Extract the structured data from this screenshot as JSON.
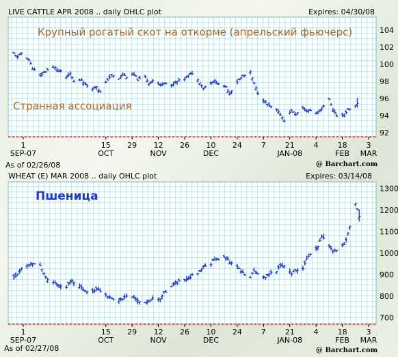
{
  "chart_data": [
    {
      "type": "ohlc",
      "header_left": "LIVE CATTLE APR 2008 .. daily OHLC plot",
      "header_right": "Expires: 04/30/08",
      "title": "Крупный рогатый скот на откорме (апрельский фьючерс)",
      "annotation": "Странная ассоциация",
      "as_of": "As of 02/26/08",
      "source": "@ Barchart.com",
      "ylim": [
        91.5,
        105.5
      ],
      "yticks": [
        "92",
        "94",
        "96",
        "98",
        "100",
        "102",
        "104"
      ],
      "xticks": [
        {
          "label": "1",
          "sub": "SEP-07"
        },
        {
          "label": "15",
          "sub": "OCT"
        },
        {
          "label": "29",
          "sub": ""
        },
        {
          "label": "12",
          "sub": "NOV"
        },
        {
          "label": "26",
          "sub": ""
        },
        {
          "label": "10",
          "sub": "DEC"
        },
        {
          "label": "24",
          "sub": ""
        },
        {
          "label": "7",
          "sub": ""
        },
        {
          "label": "21",
          "sub": "JAN-08"
        },
        {
          "label": "4",
          "sub": ""
        },
        {
          "label": "18",
          "sub": "FEB"
        },
        {
          "label": "3",
          "sub": "MAR"
        }
      ],
      "x_start": "2007-08-27",
      "xtick_dates": [
        "2007-09-01",
        "2007-10-15",
        "2007-10-29",
        "2007-11-12",
        "2007-11-26",
        "2007-12-10",
        "2007-12-24",
        "2008-01-07",
        "2008-01-21",
        "2008-02-04",
        "2008-02-18",
        "2008-03-03"
      ],
      "anchors": [
        [
          "2007-08-27",
          101.2
        ],
        [
          "2007-08-29",
          100.8
        ],
        [
          "2007-08-31",
          101.3
        ],
        [
          "2007-09-04",
          100.5
        ],
        [
          "2007-09-06",
          99.5
        ],
        [
          "2007-09-10",
          98.6
        ],
        [
          "2007-09-12",
          99.0
        ],
        [
          "2007-09-14",
          99.3
        ],
        [
          "2007-09-18",
          99.6
        ],
        [
          "2007-09-20",
          99.3
        ],
        [
          "2007-09-24",
          98.5
        ],
        [
          "2007-09-26",
          98.9
        ],
        [
          "2007-09-28",
          97.9
        ],
        [
          "2007-10-02",
          98.2
        ],
        [
          "2007-10-04",
          97.6
        ],
        [
          "2007-10-08",
          97.2
        ],
        [
          "2007-10-10",
          97.4
        ],
        [
          "2007-10-12",
          96.7
        ],
        [
          "2007-10-16",
          98.2
        ],
        [
          "2007-10-18",
          98.7
        ],
        [
          "2007-10-22",
          98.3
        ],
        [
          "2007-10-24",
          98.8
        ],
        [
          "2007-10-26",
          98.5
        ],
        [
          "2007-10-30",
          98.8
        ],
        [
          "2007-11-01",
          98.2
        ],
        [
          "2007-11-05",
          98.4
        ],
        [
          "2007-11-07",
          97.8
        ],
        [
          "2007-11-09",
          98.1
        ],
        [
          "2007-11-13",
          97.5
        ],
        [
          "2007-11-15",
          97.9
        ],
        [
          "2007-11-19",
          97.4
        ],
        [
          "2007-11-21",
          97.9
        ],
        [
          "2007-11-26",
          98.3
        ],
        [
          "2007-11-28",
          98.7
        ],
        [
          "2007-11-30",
          98.9
        ],
        [
          "2007-12-04",
          97.9
        ],
        [
          "2007-12-06",
          97.2
        ],
        [
          "2007-12-10",
          97.8
        ],
        [
          "2007-12-12",
          98.0
        ],
        [
          "2007-12-14",
          97.7
        ],
        [
          "2007-12-18",
          97.3
        ],
        [
          "2007-12-20",
          96.6
        ],
        [
          "2007-12-24",
          97.9
        ],
        [
          "2007-12-27",
          98.6
        ],
        [
          "2007-12-31",
          99.0
        ],
        [
          "2008-01-02",
          97.7
        ],
        [
          "2008-01-04",
          96.6
        ],
        [
          "2008-01-08",
          95.5
        ],
        [
          "2008-01-10",
          95.1
        ],
        [
          "2008-01-14",
          94.6
        ],
        [
          "2008-01-16",
          94.1
        ],
        [
          "2008-01-18",
          93.4
        ],
        [
          "2008-01-22",
          94.6
        ],
        [
          "2008-01-24",
          94.1
        ],
        [
          "2008-01-28",
          94.8
        ],
        [
          "2008-01-30",
          94.5
        ],
        [
          "2008-02-01",
          94.6
        ],
        [
          "2008-02-05",
          94.3
        ],
        [
          "2008-02-07",
          94.9
        ],
        [
          "2008-02-11",
          95.8
        ],
        [
          "2008-02-13",
          94.7
        ],
        [
          "2008-02-15",
          93.9
        ],
        [
          "2008-02-19",
          94.0
        ],
        [
          "2008-02-21",
          94.7
        ],
        [
          "2008-02-25",
          95.1
        ],
        [
          "2008-02-26",
          95.4
        ]
      ],
      "line_color": "#1a36e8"
    },
    {
      "type": "ohlc",
      "header_left": "WHEAT (E) MAR 2008 .. daily OHLC plot",
      "header_right": "Expires: 03/14/08",
      "title": "Пшеница",
      "as_of": "As of 02/27/08",
      "source": "@ Barchart.com",
      "ylim": [
        670,
        1330
      ],
      "yticks": [
        "700",
        "800",
        "900",
        "1000",
        "1100",
        "1200",
        "1300"
      ],
      "xticks": [
        {
          "label": "1",
          "sub": "SEP-07"
        },
        {
          "label": "15",
          "sub": "OCT"
        },
        {
          "label": "29",
          "sub": ""
        },
        {
          "label": "12",
          "sub": "NOV"
        },
        {
          "label": "26",
          "sub": ""
        },
        {
          "label": "10",
          "sub": "DEC"
        },
        {
          "label": "24",
          "sub": ""
        },
        {
          "label": "7",
          "sub": ""
        },
        {
          "label": "21",
          "sub": "JAN-08"
        },
        {
          "label": "4",
          "sub": ""
        },
        {
          "label": "18",
          "sub": "FEB"
        },
        {
          "label": "3",
          "sub": "MAR"
        }
      ],
      "x_start": "2007-08-27",
      "xtick_dates": [
        "2007-09-01",
        "2007-10-15",
        "2007-10-29",
        "2007-11-12",
        "2007-11-26",
        "2007-12-10",
        "2007-12-24",
        "2008-01-07",
        "2008-01-21",
        "2008-02-04",
        "2008-02-18",
        "2008-03-03"
      ],
      "anchors": [
        [
          "2007-08-27",
          890
        ],
        [
          "2007-08-29",
          905
        ],
        [
          "2007-08-31",
          930
        ],
        [
          "2007-09-04",
          945
        ],
        [
          "2007-09-06",
          955
        ],
        [
          "2007-09-10",
          940
        ],
        [
          "2007-09-12",
          905
        ],
        [
          "2007-09-14",
          880
        ],
        [
          "2007-09-18",
          860
        ],
        [
          "2007-09-20",
          845
        ],
        [
          "2007-09-24",
          840
        ],
        [
          "2007-09-26",
          870
        ],
        [
          "2007-09-28",
          865
        ],
        [
          "2007-10-02",
          835
        ],
        [
          "2007-10-04",
          825
        ],
        [
          "2007-10-08",
          820
        ],
        [
          "2007-10-10",
          835
        ],
        [
          "2007-10-12",
          825
        ],
        [
          "2007-10-16",
          800
        ],
        [
          "2007-10-18",
          790
        ],
        [
          "2007-10-22",
          780
        ],
        [
          "2007-10-24",
          785
        ],
        [
          "2007-10-26",
          800
        ],
        [
          "2007-10-30",
          790
        ],
        [
          "2007-11-01",
          780
        ],
        [
          "2007-11-05",
          770
        ],
        [
          "2007-11-07",
          775
        ],
        [
          "2007-11-09",
          795
        ],
        [
          "2007-11-13",
          790
        ],
        [
          "2007-11-15",
          815
        ],
        [
          "2007-11-19",
          840
        ],
        [
          "2007-11-21",
          860
        ],
        [
          "2007-11-26",
          875
        ],
        [
          "2007-11-28",
          880
        ],
        [
          "2007-11-30",
          895
        ],
        [
          "2007-12-04",
          910
        ],
        [
          "2007-12-06",
          935
        ],
        [
          "2007-12-10",
          950
        ],
        [
          "2007-12-12",
          975
        ],
        [
          "2007-12-14",
          965
        ],
        [
          "2007-12-18",
          985
        ],
        [
          "2007-12-20",
          955
        ],
        [
          "2007-12-24",
          935
        ],
        [
          "2007-12-27",
          905
        ],
        [
          "2007-12-31",
          890
        ],
        [
          "2008-01-02",
          915
        ],
        [
          "2008-01-04",
          905
        ],
        [
          "2008-01-08",
          890
        ],
        [
          "2008-01-10",
          905
        ],
        [
          "2008-01-14",
          920
        ],
        [
          "2008-01-16",
          940
        ],
        [
          "2008-01-18",
          935
        ],
        [
          "2008-01-22",
          905
        ],
        [
          "2008-01-24",
          915
        ],
        [
          "2008-01-28",
          930
        ],
        [
          "2008-01-30",
          975
        ],
        [
          "2008-02-01",
          995
        ],
        [
          "2008-02-05",
          1030
        ],
        [
          "2008-02-07",
          1080
        ],
        [
          "2008-02-11",
          1035
        ],
        [
          "2008-02-13",
          1010
        ],
        [
          "2008-02-15",
          1015
        ],
        [
          "2008-02-19",
          1040
        ],
        [
          "2008-02-21",
          1090
        ],
        [
          "2008-02-25",
          1230
        ],
        [
          "2008-02-27",
          1170
        ]
      ],
      "line_color": "#1a36e8"
    }
  ]
}
